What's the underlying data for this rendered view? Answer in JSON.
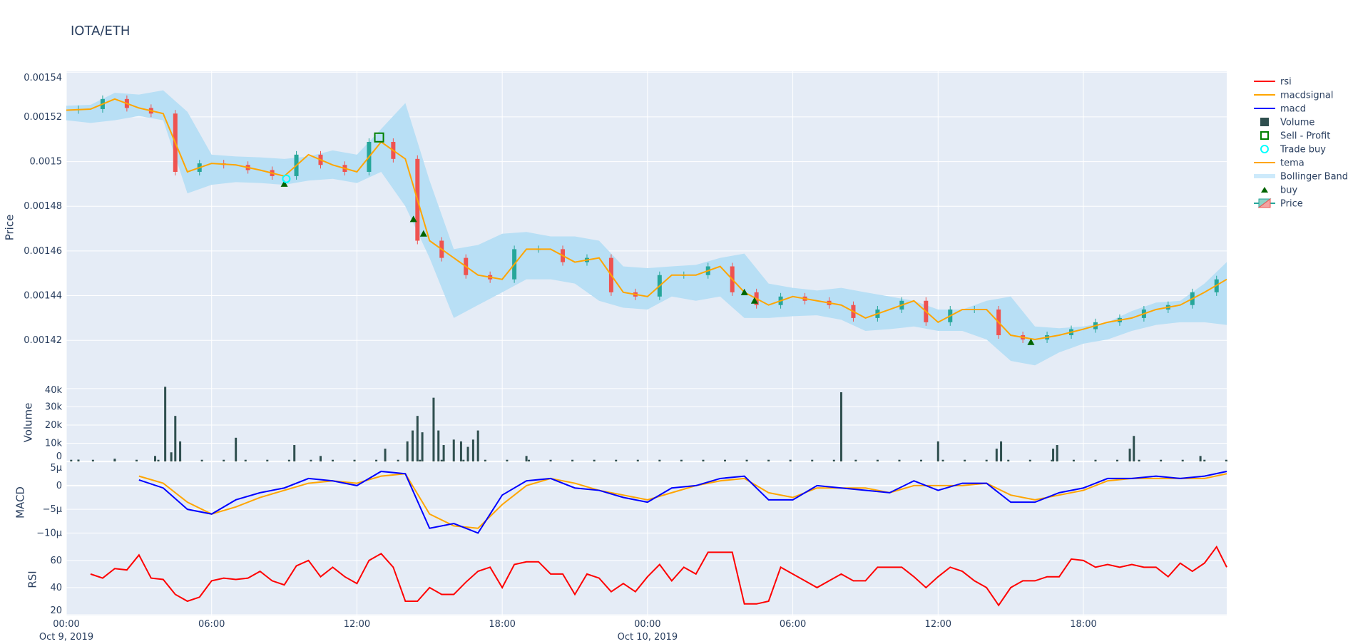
{
  "title": "IOTA/ETH",
  "chart_data": [
    {
      "panel": "price",
      "type": "candlestick+line",
      "ylabel": "Price",
      "ylim": [
        0.0014006,
        0.0015404
      ],
      "yticks": [
        "0.00142",
        "0.00144",
        "0.00146",
        "0.00148",
        "0.0015",
        "0.00152",
        "0.00154"
      ],
      "ytick_values": [
        0.00142,
        0.00144,
        0.00146,
        0.00148,
        0.0015,
        0.00152,
        0.00154
      ],
      "x_start": "2019-10-09 00:00",
      "x_step_minutes": 60,
      "tema": [
        0.001523,
        0.0015235,
        0.001528,
        0.001524,
        0.0015215,
        0.0014954,
        0.0014992,
        0.0014985,
        0.0014962,
        0.0014935,
        0.0015031,
        0.0014985,
        0.0014954,
        0.0015088,
        0.0015012,
        0.0014646,
        0.0014569,
        0.0014492,
        0.0014473,
        0.0014608,
        0.0014608,
        0.001455,
        0.0014569,
        0.0014415,
        0.0014396,
        0.0014492,
        0.0014492,
        0.0014531,
        0.0014415,
        0.0014358,
        0.0014396,
        0.0014377,
        0.0014358,
        0.00143,
        0.0014338,
        0.0014377,
        0.0014281,
        0.0014338,
        0.0014338,
        0.0014223,
        0.0014204,
        0.0014223,
        0.001425,
        0.0014281,
        0.00143,
        0.0014338,
        0.0014358,
        0.0014415,
        0.0014473
      ],
      "bb_upper": [
        0.001525,
        0.0015254,
        0.0015308,
        0.00153,
        0.0015319,
        0.0015223,
        0.0015031,
        0.0015023,
        0.0015019,
        0.0015012,
        0.0015023,
        0.001505,
        0.0015031,
        0.0015146,
        0.0015262,
        0.0014915,
        0.0014608,
        0.0014627,
        0.0014677,
        0.0014685,
        0.0014665,
        0.0014665,
        0.0014646,
        0.0014531,
        0.0014523,
        0.0014531,
        0.0014538,
        0.0014569,
        0.0014588,
        0.0014454,
        0.0014435,
        0.0014423,
        0.0014435,
        0.0014415,
        0.0014396,
        0.0014377,
        0.0014338,
        0.0014338,
        0.0014377,
        0.0014396,
        0.0014262,
        0.0014254,
        0.0014262,
        0.0014281,
        0.0014331,
        0.0014369,
        0.0014377,
        0.0014454,
        0.001455
      ],
      "bb_lower": [
        0.0015185,
        0.0015173,
        0.0015185,
        0.0015204,
        0.0015185,
        0.0014858,
        0.0014896,
        0.0014908,
        0.0014904,
        0.0014896,
        0.0014915,
        0.0014923,
        0.0014904,
        0.0014954,
        0.00148,
        0.0014569,
        0.00143,
        0.0014358,
        0.0014415,
        0.0014473,
        0.0014473,
        0.0014454,
        0.0014377,
        0.0014346,
        0.0014338,
        0.0014396,
        0.0014377,
        0.0014396,
        0.00143,
        0.00143,
        0.0014308,
        0.0014312,
        0.0014292,
        0.0014242,
        0.001425,
        0.0014262,
        0.0014242,
        0.0014242,
        0.0014204,
        0.0014108,
        0.0014088,
        0.0014146,
        0.0014185,
        0.0014204,
        0.0014242,
        0.0014269,
        0.0014281,
        0.0014281,
        0.0014269
      ],
      "buy": [
        {
          "time": "2019-10-09 09:00",
          "price": 0.00149
        },
        {
          "time": "2019-10-09 14:20",
          "price": 0.0014742
        },
        {
          "time": "2019-10-09 14:45",
          "price": 0.0014677
        },
        {
          "time": "2019-10-10 04:00",
          "price": 0.0014415
        },
        {
          "time": "2019-10-10 04:25",
          "price": 0.0014377
        },
        {
          "time": "2019-10-10 15:50",
          "price": 0.0014192
        }
      ],
      "trade_buy": [
        {
          "time": "2019-10-09 09:05",
          "price": 0.0014923
        }
      ],
      "sell_profit": [
        {
          "time": "2019-10-09 12:55",
          "price": 0.0015108
        }
      ]
    },
    {
      "panel": "volume",
      "type": "bar",
      "ylabel": "Volume",
      "ylim": [
        0,
        42700
      ],
      "yticks": [
        "0",
        "10k",
        "20k",
        "30k",
        "40k"
      ],
      "ytick_values": [
        0,
        10000,
        20000,
        30000,
        40000
      ],
      "bars": [
        {
          "time": "2019-10-09 00:30",
          "v": 1000
        },
        {
          "time": "2019-10-09 02:00",
          "v": 1500
        },
        {
          "time": "2019-10-09 03:40",
          "v": 3000
        },
        {
          "time": "2019-10-09 04:05",
          "v": 41000
        },
        {
          "time": "2019-10-09 04:30",
          "v": 25000
        },
        {
          "time": "2019-10-09 04:42",
          "v": 11000
        },
        {
          "time": "2019-10-09 04:20",
          "v": 5000
        },
        {
          "time": "2019-10-09 07:00",
          "v": 13000
        },
        {
          "time": "2019-10-09 09:25",
          "v": 9000
        },
        {
          "time": "2019-10-09 10:30",
          "v": 3000
        },
        {
          "time": "2019-10-09 13:10",
          "v": 7000
        },
        {
          "time": "2019-10-09 14:05",
          "v": 11000
        },
        {
          "time": "2019-10-09 14:18",
          "v": 17000
        },
        {
          "time": "2019-10-09 14:30",
          "v": 25000
        },
        {
          "time": "2019-10-09 14:42",
          "v": 16000
        },
        {
          "time": "2019-10-09 15:10",
          "v": 35000
        },
        {
          "time": "2019-10-09 15:22",
          "v": 17000
        },
        {
          "time": "2019-10-09 15:35",
          "v": 9000
        },
        {
          "time": "2019-10-09 16:00",
          "v": 12000
        },
        {
          "time": "2019-10-09 16:18",
          "v": 11000
        },
        {
          "time": "2019-10-09 16:35",
          "v": 8000
        },
        {
          "time": "2019-10-09 16:48",
          "v": 12000
        },
        {
          "time": "2019-10-09 17:00",
          "v": 17000
        },
        {
          "time": "2019-10-09 19:00",
          "v": 3000
        },
        {
          "time": "2019-10-10 08:00",
          "v": 38000
        },
        {
          "time": "2019-10-10 12:00",
          "v": 11000
        },
        {
          "time": "2019-10-10 14:25",
          "v": 7000
        },
        {
          "time": "2019-10-10 14:36",
          "v": 11000
        },
        {
          "time": "2019-10-10 16:45",
          "v": 7000
        },
        {
          "time": "2019-10-10 16:55",
          "v": 9000
        },
        {
          "time": "2019-10-10 19:55",
          "v": 7000
        },
        {
          "time": "2019-10-10 20:05",
          "v": 14000
        },
        {
          "time": "2019-10-10 22:50",
          "v": 3000
        }
      ]
    },
    {
      "panel": "macd",
      "type": "line",
      "ylabel": "MACD",
      "ylim": [
        -1.22e-05,
        5.1e-06
      ],
      "yticks": [
        "5μ",
        "0",
        "−5μ",
        "−10μ"
      ],
      "ytick_values": [
        5e-06,
        0,
        -5e-06,
        -1e-05
      ],
      "x_start": "2019-10-09 03:00",
      "x_step_minutes": 60,
      "series": [
        {
          "name": "macd",
          "color": "#0000ff",
          "values_micro": [
            1.2,
            -0.5,
            -5,
            -6,
            -3,
            -1.5,
            -0.5,
            1.5,
            1,
            0,
            3,
            2.5,
            -9,
            -8,
            -10,
            -2,
            1,
            1.5,
            -0.5,
            -1,
            -2.5,
            -3.5,
            -0.5,
            0,
            1.5,
            2,
            -3,
            -3,
            0,
            -0.5,
            -1,
            -1.5,
            1,
            -1,
            0.5,
            0.5,
            -3.5,
            -3.5,
            -1.5,
            -0.5,
            1.5,
            1.5,
            2,
            1.5,
            2,
            3
          ]
        },
        {
          "name": "macdsignal",
          "color": "#ffa500",
          "values_micro": [
            2,
            0.5,
            -3.5,
            -6,
            -4.5,
            -2.5,
            -1,
            0.5,
            1,
            0.5,
            2,
            2.5,
            -6,
            -8.5,
            -9,
            -4,
            0,
            1.5,
            0.5,
            -1,
            -2,
            -3,
            -1.5,
            0,
            1,
            1.5,
            -1.5,
            -2.5,
            -0.5,
            -0.5,
            -0.5,
            -1.5,
            0,
            0,
            0,
            0.5,
            -2,
            -3,
            -2,
            -1,
            1,
            1.5,
            1.5,
            1.5,
            1.5,
            2.5
          ]
        }
      ]
    },
    {
      "panel": "rsi",
      "type": "line",
      "ylabel": "RSI",
      "ylim": [
        19.5,
        72.5
      ],
      "yticks": [
        "20",
        "40",
        "60"
      ],
      "ytick_values": [
        20,
        40,
        60
      ],
      "x_start": "2019-10-09 01:00",
      "x_step_minutes": 30,
      "series": [
        {
          "name": "rsi",
          "color": "#ff0000",
          "values": [
            50,
            47,
            54,
            53,
            64,
            47,
            46,
            35,
            30,
            33,
            45,
            47,
            46,
            47,
            52,
            45,
            42,
            56,
            60,
            48,
            55,
            48,
            43,
            60,
            65,
            55,
            30,
            30,
            40,
            35,
            35,
            44,
            52,
            55,
            40,
            57,
            59,
            59,
            50,
            50,
            35,
            50,
            47,
            37,
            43,
            37,
            48,
            57,
            45,
            55,
            50,
            66,
            66,
            66,
            28,
            28,
            30,
            55,
            50,
            45,
            40,
            45,
            50,
            45,
            45,
            55,
            55,
            55,
            48,
            40,
            48,
            55,
            52,
            45,
            40,
            27,
            40,
            45,
            45,
            48,
            48,
            61,
            60,
            55,
            57,
            55,
            57,
            55,
            55,
            48,
            58,
            52,
            58,
            70,
            55
          ]
        }
      ]
    }
  ],
  "xaxis": {
    "ticks": [
      "00:00",
      "06:00",
      "12:00",
      "18:00",
      "00:00",
      "06:00",
      "12:00",
      "18:00"
    ],
    "dates": [
      "Oct 9, 2019",
      "Oct 10, 2019"
    ]
  },
  "colors": {
    "increasing": "#26a69a",
    "decreasing": "#ef5350",
    "bollinger": "#b8dff5",
    "tema": "#ffa500",
    "volume": "#2f4f4f",
    "buy": "#006400",
    "panel": "#e5ecf6"
  },
  "legend": [
    {
      "label": "rsi",
      "kind": "line",
      "color": "#ff0000"
    },
    {
      "label": "macdsignal",
      "kind": "line",
      "color": "#ffa500"
    },
    {
      "label": "macd",
      "kind": "line",
      "color": "#0000ff"
    },
    {
      "label": "Volume",
      "kind": "square",
      "color": "#2f4f4f"
    },
    {
      "label": "Sell - Profit",
      "kind": "square-open",
      "color": "#008000"
    },
    {
      "label": "Trade buy",
      "kind": "circle-open",
      "color": "#00ffff"
    },
    {
      "label": "tema",
      "kind": "line",
      "color": "#ffa500"
    },
    {
      "label": "Bollinger Band",
      "kind": "band",
      "color": "#cdeafb"
    },
    {
      "label": "buy",
      "kind": "triangle",
      "color": "#006400"
    },
    {
      "label": "Price",
      "kind": "candle",
      "color": "#26a69a"
    }
  ]
}
